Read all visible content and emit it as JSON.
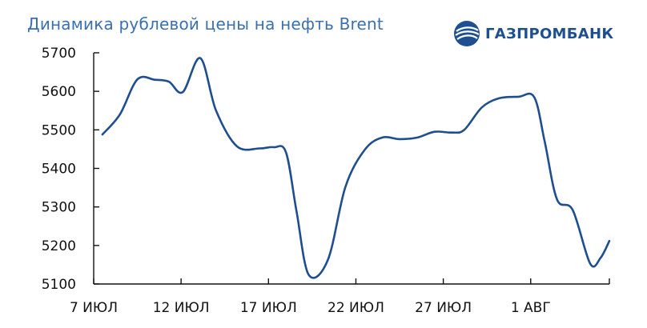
{
  "header": {
    "title": "Динамика рублевой цены на нефть Brent",
    "brand": "ГАЗПРОМБАНК",
    "brand_color": "#1d4f91",
    "brand_icon": "gazprombank-globe-icon"
  },
  "chart_data": {
    "type": "line",
    "title": "Динамика рублевой цены на нефть Brent",
    "xlabel": "",
    "ylabel": "",
    "ylim": [
      5100,
      5700
    ],
    "yticks": [
      5100,
      5200,
      5300,
      5400,
      5500,
      5600,
      5700
    ],
    "xlim": [
      0,
      29.5
    ],
    "xticks": [
      {
        "x": 0,
        "label": "7 ИЮЛ"
      },
      {
        "x": 5,
        "label": "12 ИЮЛ"
      },
      {
        "x": 10,
        "label": "17 ИЮЛ"
      },
      {
        "x": 15,
        "label": "22 ИЮЛ"
      },
      {
        "x": 20,
        "label": "27 ИЮЛ"
      },
      {
        "x": 25,
        "label": "1 АВГ"
      }
    ],
    "grid": false,
    "legend": "none",
    "line_color": "#1f4e8f",
    "series": [
      {
        "points": [
          [
            0.5,
            5488
          ],
          [
            1.5,
            5540
          ],
          [
            2.5,
            5631
          ],
          [
            3.5,
            5630
          ],
          [
            4.3,
            5625
          ],
          [
            5.1,
            5598
          ],
          [
            6.1,
            5686
          ],
          [
            7.0,
            5550
          ],
          [
            8.2,
            5457
          ],
          [
            9.5,
            5452
          ],
          [
            10.3,
            5455
          ],
          [
            11.0,
            5442
          ],
          [
            11.6,
            5290
          ],
          [
            12.3,
            5124
          ],
          [
            13.4,
            5163
          ],
          [
            14.4,
            5352
          ],
          [
            15.5,
            5448
          ],
          [
            16.5,
            5480
          ],
          [
            17.5,
            5476
          ],
          [
            18.5,
            5480
          ],
          [
            19.5,
            5495
          ],
          [
            20.5,
            5493
          ],
          [
            21.2,
            5500
          ],
          [
            22.2,
            5558
          ],
          [
            23.2,
            5582
          ],
          [
            24.3,
            5586
          ],
          [
            25.2,
            5585
          ],
          [
            25.8,
            5470
          ],
          [
            26.5,
            5320
          ],
          [
            27.4,
            5292
          ],
          [
            28.4,
            5153
          ],
          [
            29.0,
            5168
          ],
          [
            29.5,
            5212
          ]
        ]
      }
    ]
  }
}
